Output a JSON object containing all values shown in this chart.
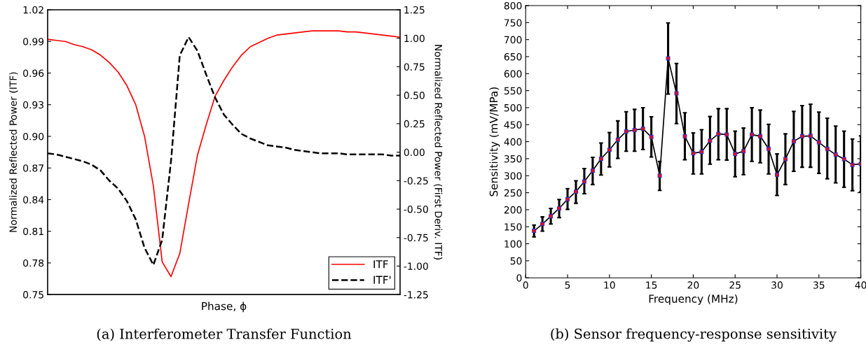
{
  "chart_data": [
    {
      "type": "line",
      "title": "(a) Interferometer Transfer Function",
      "xlabel": "Phase, ϕ",
      "ylabel": "Normalized Reflected Power (ITF)",
      "y2label": "Normalized Reflected Power (First Deriv. ITF)",
      "categories": [
        null,
        null,
        null,
        null,
        null,
        null,
        null,
        null,
        null,
        null,
        null,
        null,
        null,
        null,
        null,
        null,
        null,
        null,
        null,
        null,
        null,
        null,
        null,
        null,
        null,
        null,
        null,
        null,
        null,
        null,
        null,
        null,
        null,
        null,
        null,
        null,
        null,
        null,
        null,
        null,
        null
      ],
      "series": [
        {
          "name": "ITF",
          "color": "#ff0000",
          "line_style": "solid",
          "values": [
            0.992,
            0.991,
            0.99,
            0.987,
            0.985,
            0.982,
            0.977,
            0.97,
            0.961,
            0.948,
            0.93,
            0.9,
            0.853,
            0.781,
            0.767,
            0.789,
            0.836,
            0.882,
            0.911,
            0.938,
            0.953,
            0.966,
            0.977,
            0.985,
            0.989,
            0.993,
            0.996,
            0.997,
            0.998,
            0.999,
            1.0,
            1.0,
            1.0,
            1.0,
            0.999,
            0.999,
            0.998,
            0.997,
            0.996,
            0.995,
            0.994
          ]
        },
        {
          "name": "ITF'",
          "color": "#000000",
          "line_style": "dashed",
          "axis": "y2",
          "values": [
            -0.01,
            -0.02,
            -0.04,
            -0.06,
            -0.08,
            -0.11,
            -0.16,
            -0.25,
            -0.32,
            -0.43,
            -0.59,
            -0.84,
            -0.99,
            -0.77,
            -0.08,
            0.85,
            1.01,
            0.89,
            0.68,
            0.48,
            0.33,
            0.24,
            0.16,
            0.12,
            0.09,
            0.06,
            0.05,
            0.04,
            0.02,
            0.01,
            0.0,
            -0.01,
            -0.01,
            -0.01,
            -0.02,
            -0.02,
            -0.02,
            -0.02,
            -0.02,
            -0.03,
            -0.03
          ]
        }
      ],
      "ylim": [
        0.75,
        1.02
      ],
      "yticks": [
        0.75,
        0.78,
        0.81,
        0.84,
        0.87,
        {
          "value": 0.9,
          "label": "0.90"
        },
        0.93,
        0.96,
        0.99,
        1.02
      ],
      "y2lim": [
        -1.25,
        1.25
      ],
      "y2ticks": [
        -1.25,
        {
          "value": -1.0,
          "label": "-1.00"
        },
        -0.75,
        {
          "value": -0.5,
          "label": "-0.50"
        },
        -0.25,
        {
          "value": 0.0,
          "label": "0.00"
        },
        0.25,
        {
          "value": 0.5,
          "label": "0.50"
        },
        0.75,
        {
          "value": 1.0,
          "label": "1.00"
        },
        1.25
      ],
      "legend": "bottom right",
      "grid": false,
      "marker": "none"
    },
    {
      "type": "line",
      "title": "(b) Sensor frequency-response sensitivity",
      "xlabel": "Frequency (MHz)",
      "ylabel": "Sensitivity (mV/MPa)",
      "x": [
        1,
        2,
        3,
        4,
        5,
        6,
        7,
        8,
        9,
        10,
        11,
        12,
        13,
        14,
        15,
        16,
        17,
        18,
        19,
        20,
        21,
        22,
        23,
        24,
        25,
        26,
        27,
        28,
        29,
        30,
        31,
        32,
        33,
        34,
        35,
        36,
        37,
        38,
        39,
        40
      ],
      "series": [
        {
          "color": "#000000",
          "values": [
            138,
            158,
            181,
            204,
            231,
            253,
            283,
            315,
            350,
            376,
            406,
            430,
            434,
            438,
            414,
            300,
            645,
            542,
            416,
            366,
            370,
            403,
            423,
            421,
            364,
            372,
            421,
            416,
            379,
            303,
            349,
            401,
            416,
            417,
            398,
            379,
            362,
            349,
            332,
            335
          ],
          "errors": [
            [
              120,
              155
            ],
            [
              137,
              179
            ],
            [
              158,
              204
            ],
            [
              177,
              230
            ],
            [
              201,
              262
            ],
            [
              219,
              285
            ],
            [
              247,
              321
            ],
            [
              274,
              354
            ],
            [
              302,
              396
            ],
            [
              326,
              427
            ],
            [
              351,
              461
            ],
            [
              372,
              488
            ],
            [
              372,
              495
            ],
            [
              377,
              500
            ],
            [
              355,
              473
            ],
            [
              257,
              342
            ],
            [
              540,
              749
            ],
            [
              453,
              630
            ],
            [
              347,
              485
            ],
            [
              305,
              426
            ],
            [
              305,
              435
            ],
            [
              334,
              474
            ],
            [
              347,
              497
            ],
            [
              346,
              497
            ],
            [
              297,
              431
            ],
            [
              303,
              440
            ],
            [
              342,
              500
            ],
            [
              338,
              493
            ],
            [
              305,
              451
            ],
            [
              242,
              364
            ],
            [
              274,
              423
            ],
            [
              313,
              489
            ],
            [
              325,
              506
            ],
            [
              325,
              510
            ],
            [
              307,
              487
            ],
            [
              291,
              469
            ],
            [
              279,
              446
            ],
            [
              266,
              431
            ],
            [
              256,
              408
            ],
            [
              252,
              417
            ]
          ]
        }
      ],
      "xlim": [
        0,
        40
      ],
      "xticks": [
        0,
        5,
        10,
        15,
        20,
        25,
        30,
        35,
        40
      ],
      "ylim": [
        0,
        800
      ],
      "yticks": [
        0,
        50,
        100,
        150,
        200,
        250,
        300,
        350,
        400,
        450,
        500,
        550,
        600,
        650,
        700,
        750,
        800
      ],
      "grid": false,
      "legend": false,
      "marker": "square",
      "line_style": "solid"
    }
  ]
}
